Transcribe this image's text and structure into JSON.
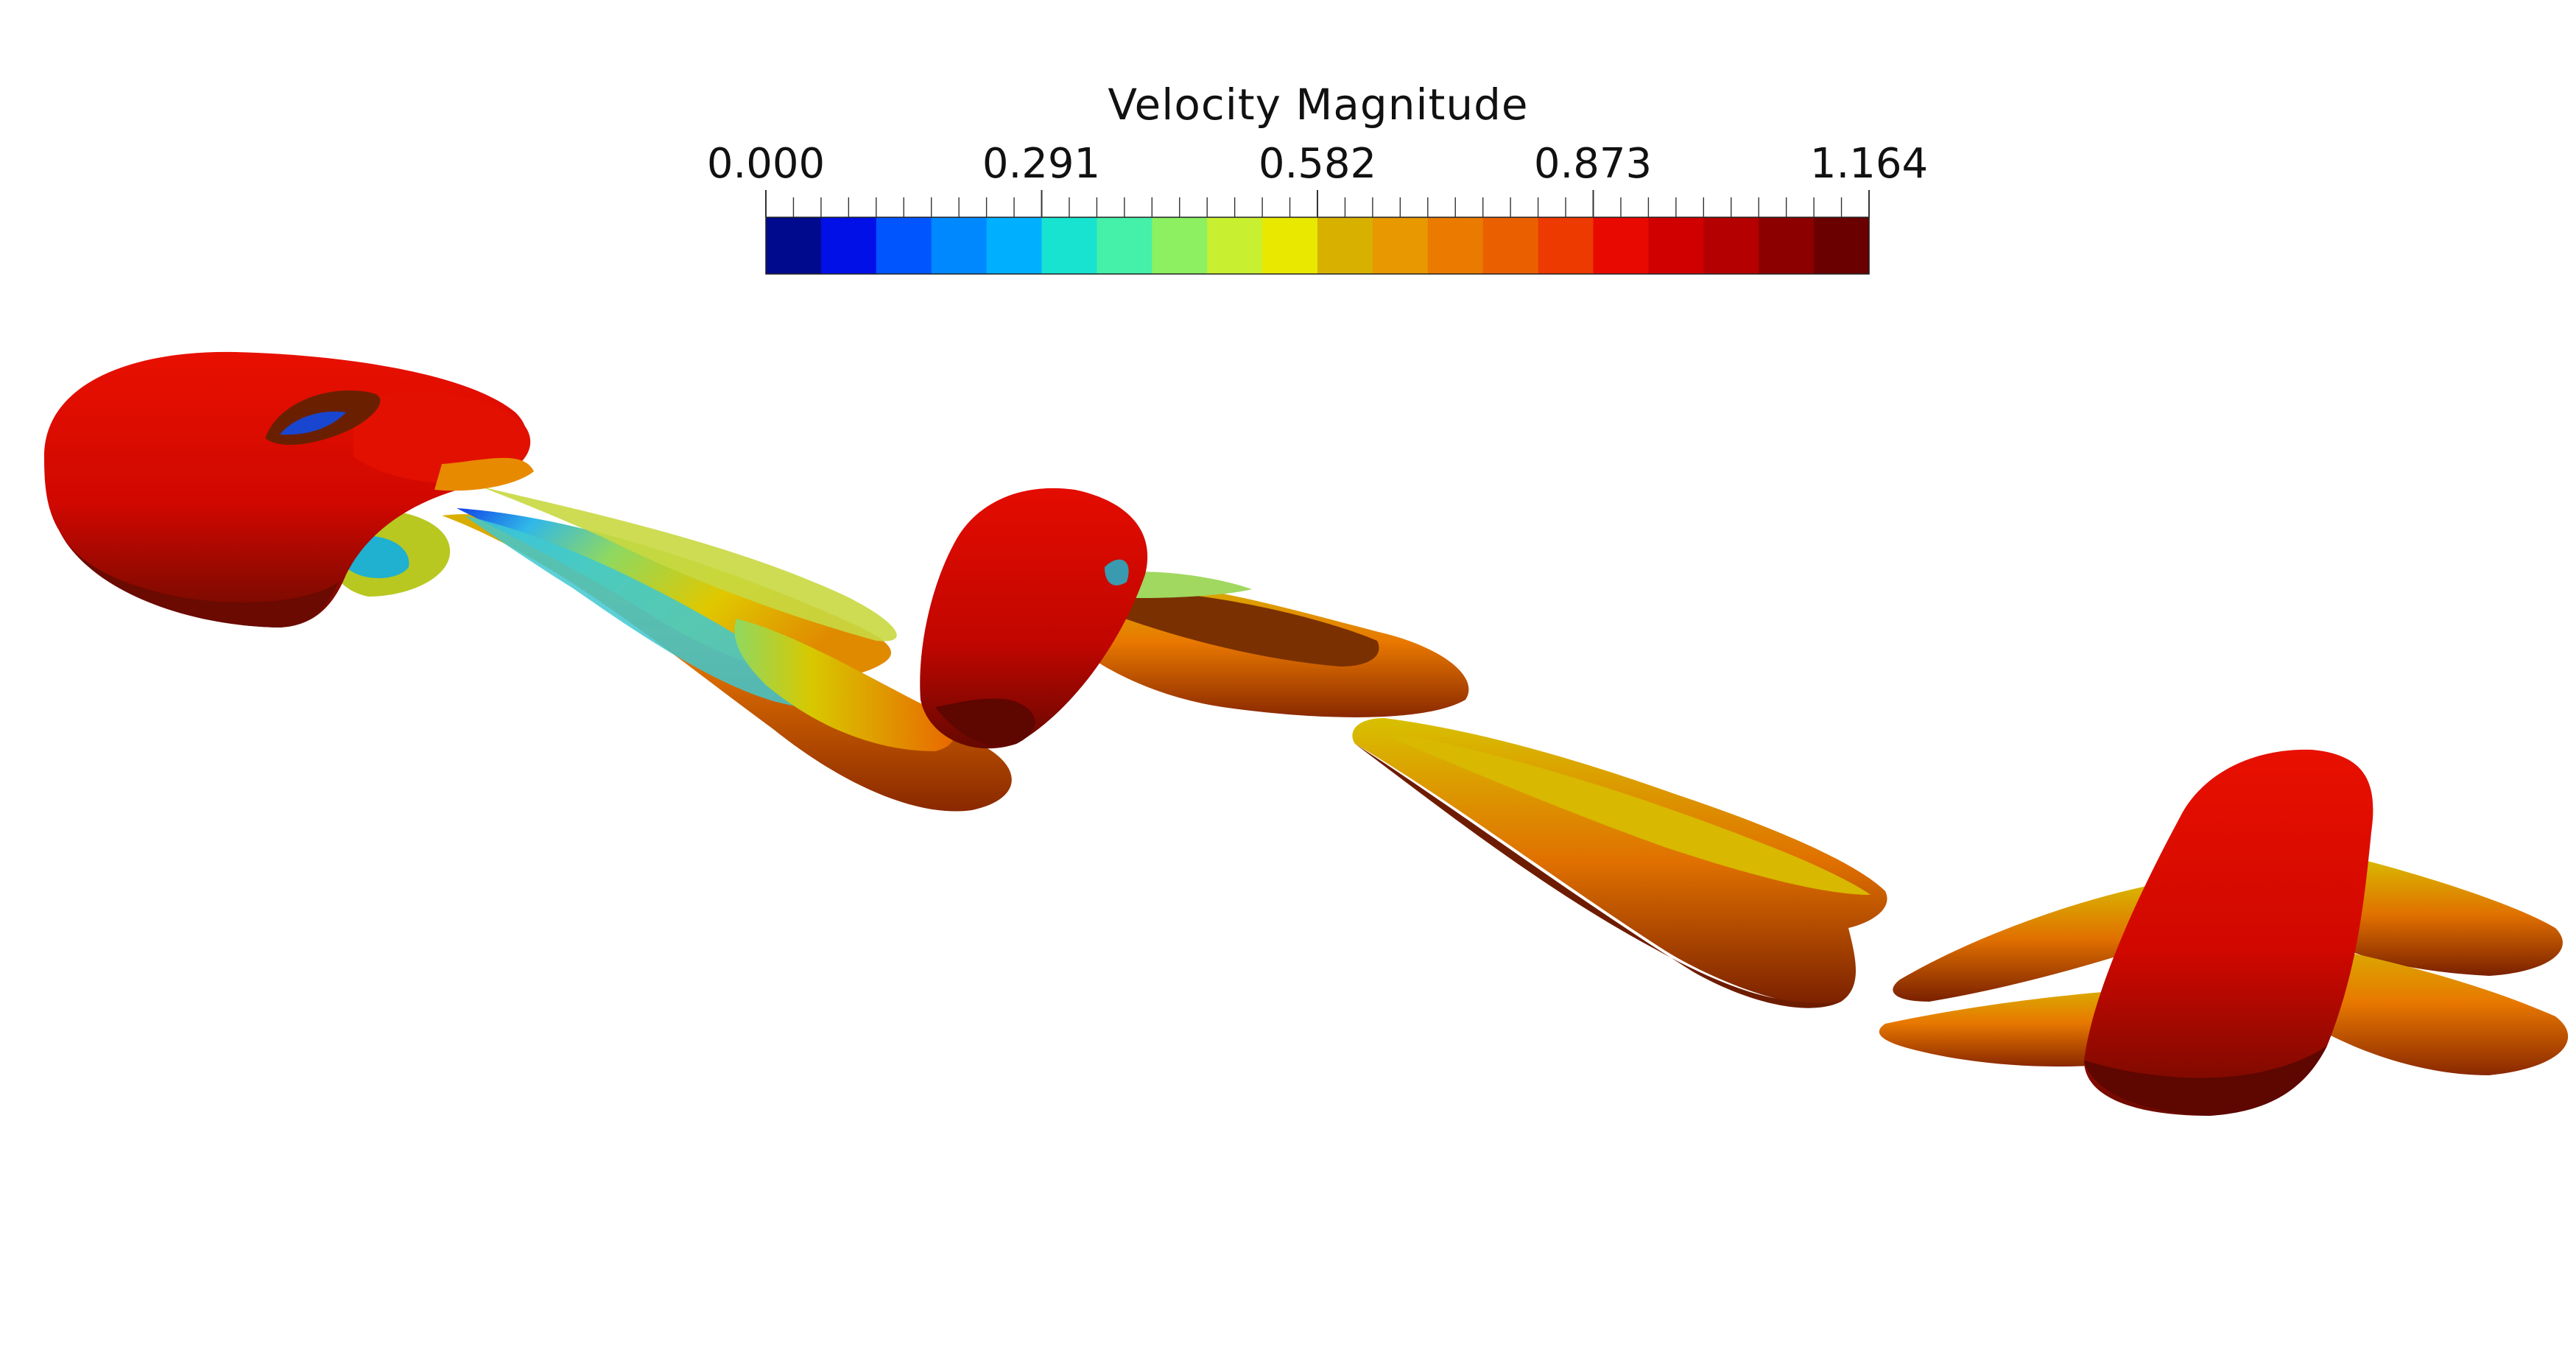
{
  "colorbar": {
    "title": "Velocity Magnitude",
    "tick_labels": [
      "0.000",
      "0.291",
      "0.582",
      "0.873",
      "1.164"
    ],
    "range": [
      0.0,
      1.164
    ],
    "bands": [
      "#000a8c",
      "#0010e6",
      "#0055ff",
      "#0088ff",
      "#00b0ff",
      "#17e3d0",
      "#45f0a8",
      "#8cf060",
      "#c8f030",
      "#e8e800",
      "#d8b000",
      "#e89800",
      "#ea7a00",
      "#ea6000",
      "#ec3a00",
      "#e80a00",
      "#d00000",
      "#b40000",
      "#8c0000",
      "#6a0000"
    ]
  },
  "surface_colors": {
    "dark_red": "#7a0a00",
    "red": "#d80a00",
    "orange": "#e86a00",
    "amber": "#d49a00",
    "yellow": "#e4c400",
    "green": "#8fd85a",
    "cyan": "#45d8c8",
    "blue": "#1040e8"
  }
}
